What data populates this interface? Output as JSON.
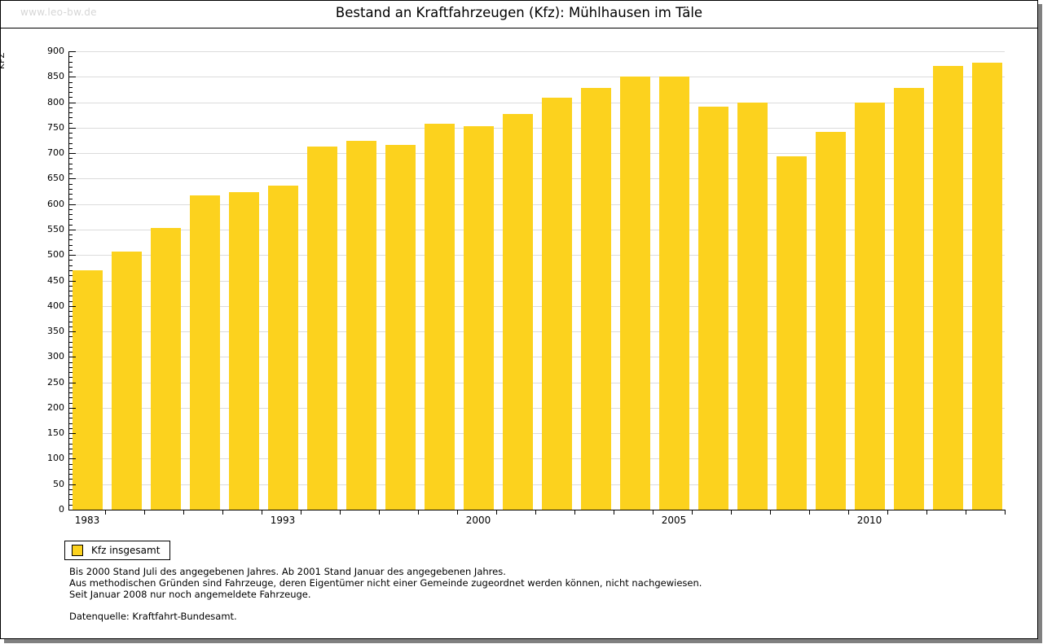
{
  "page": {
    "watermark": "www.leo-bw.de",
    "title": "Bestand an Kraftfahrzeugen (Kfz): Mühlhausen im Täle"
  },
  "legend": {
    "label": "Kfz insgesamt"
  },
  "footnotes": {
    "line1": "Bis 2000 Stand Juli des angegebenen Jahres. Ab 2001 Stand Januar des angegebenen Jahres.",
    "line2": "Aus methodischen Gründen sind Fahrzeuge, deren Eigentümer nicht einer Gemeinde zugeordnet werden können, nicht nachgewiesen.",
    "line3": "Seit Januar 2008 nur noch angemeldete Fahrzeuge.",
    "source": "Datenquelle: Kraftfahrt-Bundesamt."
  },
  "chart_data": {
    "type": "bar",
    "title": "Bestand an Kraftfahrzeugen (Kfz): Mühlhausen im Täle",
    "xlabel": "",
    "ylabel": "KFZ",
    "ylim": [
      0,
      900
    ],
    "y_tick_step": 50,
    "y_minor_tick_step": 10,
    "grid": true,
    "legend": [
      "Kfz insgesamt"
    ],
    "legend_position": "bottom-left",
    "bar_color": "#fcd21e",
    "gridline_color": "#dbdbdb",
    "values": [
      470,
      506,
      553,
      617,
      623,
      636,
      713,
      724,
      716,
      758,
      753,
      777,
      809,
      828,
      850,
      850,
      791,
      799,
      693,
      742,
      800,
      828,
      871,
      878
    ],
    "x_tick_labels": [
      {
        "bar_index": 0,
        "label": "1983"
      },
      {
        "bar_index": 5,
        "label": "1993"
      },
      {
        "bar_index": 10,
        "label": "2000"
      },
      {
        "bar_index": 15,
        "label": "2005"
      },
      {
        "bar_index": 20,
        "label": "2010"
      }
    ]
  }
}
